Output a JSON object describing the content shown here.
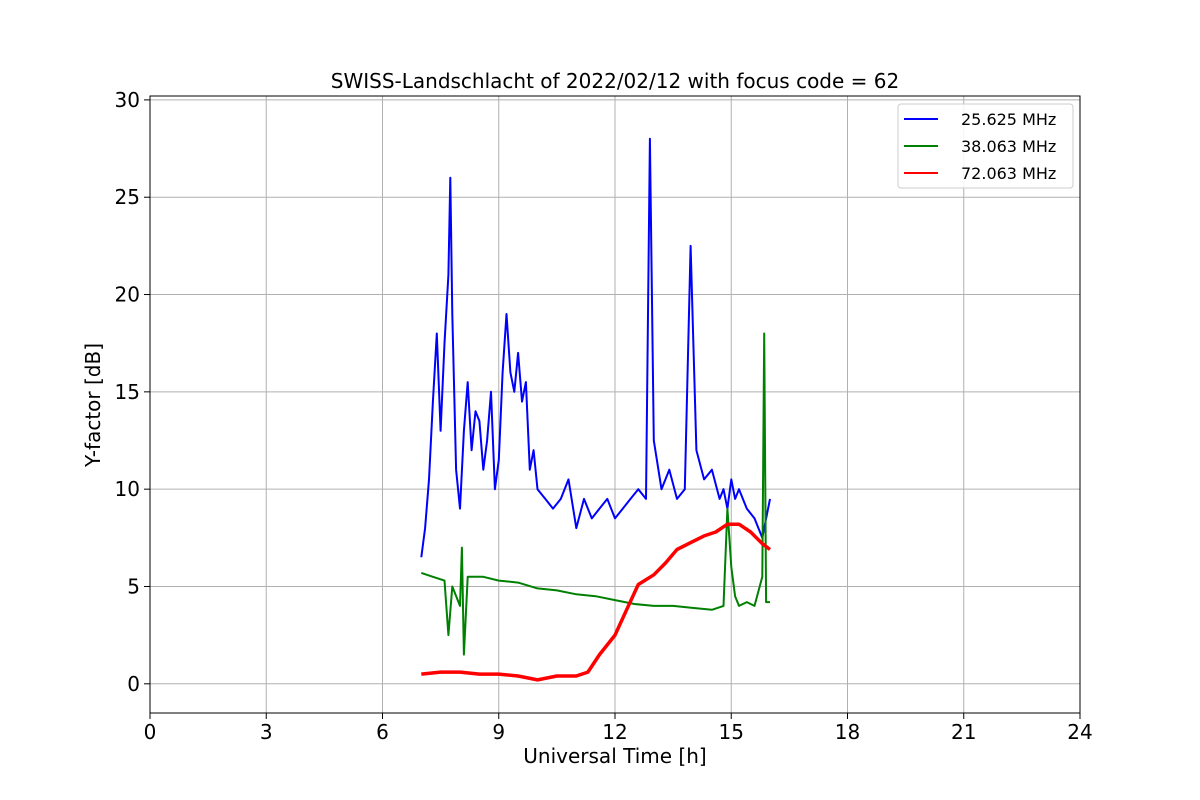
{
  "chart_data": {
    "type": "line",
    "title": "SWISS-Landschlacht of 2022/02/12 with focus code = 62",
    "xlabel": "Universal Time [h]",
    "ylabel": "Y-factor [dB]",
    "xlim": [
      0,
      24
    ],
    "ylim": [
      -1.5,
      30.2
    ],
    "xticks": [
      0,
      3,
      6,
      9,
      12,
      15,
      18,
      21,
      24
    ],
    "yticks": [
      0,
      5,
      10,
      15,
      20,
      25,
      30
    ],
    "grid": true,
    "legend_position": "top-right",
    "series": [
      {
        "name": "25.625 MHz",
        "color": "#0000ff",
        "x": [
          7.0,
          7.1,
          7.2,
          7.3,
          7.4,
          7.5,
          7.6,
          7.7,
          7.75,
          7.8,
          7.9,
          8.0,
          8.1,
          8.2,
          8.3,
          8.4,
          8.5,
          8.6,
          8.7,
          8.8,
          8.9,
          9.0,
          9.1,
          9.2,
          9.3,
          9.4,
          9.5,
          9.6,
          9.7,
          9.8,
          9.9,
          10.0,
          10.2,
          10.4,
          10.6,
          10.8,
          11.0,
          11.2,
          11.4,
          11.6,
          11.8,
          12.0,
          12.2,
          12.4,
          12.6,
          12.8,
          12.9,
          13.0,
          13.2,
          13.4,
          13.6,
          13.8,
          13.95,
          14.1,
          14.3,
          14.5,
          14.7,
          14.8,
          14.9,
          15.0,
          15.1,
          15.2,
          15.4,
          15.6,
          15.8,
          16.0
        ],
        "y": [
          6.5,
          8.0,
          10.5,
          14.5,
          18.0,
          13.0,
          17.5,
          21.0,
          26.0,
          19.0,
          11.0,
          9.0,
          13.0,
          15.5,
          12.0,
          14.0,
          13.5,
          11.0,
          12.5,
          15.0,
          10.0,
          11.5,
          16.0,
          19.0,
          16.0,
          15.0,
          17.0,
          14.5,
          15.5,
          11.0,
          12.0,
          10.0,
          9.5,
          9.0,
          9.5,
          10.5,
          8.0,
          9.5,
          8.5,
          9.0,
          9.5,
          8.5,
          9.0,
          9.5,
          10.0,
          9.5,
          28.0,
          12.5,
          10.0,
          11.0,
          9.5,
          10.0,
          22.5,
          12.0,
          10.5,
          11.0,
          9.5,
          10.0,
          9.0,
          10.5,
          9.5,
          10.0,
          9.0,
          8.5,
          7.5,
          9.5
        ]
      },
      {
        "name": "38.063 MHz",
        "color": "#008000",
        "x": [
          7.0,
          7.3,
          7.6,
          7.7,
          7.8,
          8.0,
          8.05,
          8.1,
          8.2,
          8.3,
          8.6,
          9.0,
          9.5,
          10.0,
          10.5,
          11.0,
          11.5,
          12.0,
          12.5,
          13.0,
          13.5,
          14.0,
          14.5,
          14.8,
          14.9,
          15.0,
          15.1,
          15.2,
          15.4,
          15.6,
          15.8,
          15.85,
          15.9,
          16.0
        ],
        "y": [
          5.7,
          5.5,
          5.3,
          2.5,
          5.0,
          4.0,
          7.0,
          1.5,
          5.5,
          5.5,
          5.5,
          5.3,
          5.2,
          4.9,
          4.8,
          4.6,
          4.5,
          4.3,
          4.1,
          4.0,
          4.0,
          3.9,
          3.8,
          4.0,
          9.0,
          6.0,
          4.5,
          4.0,
          4.2,
          4.0,
          5.5,
          18.0,
          4.2,
          4.2
        ]
      },
      {
        "name": "72.063 MHz",
        "color": "#ff0000",
        "x": [
          7.0,
          7.5,
          8.0,
          8.5,
          9.0,
          9.5,
          10.0,
          10.5,
          11.0,
          11.3,
          11.6,
          12.0,
          12.3,
          12.6,
          13.0,
          13.3,
          13.6,
          14.0,
          14.3,
          14.6,
          14.9,
          15.2,
          15.5,
          15.8,
          16.0
        ],
        "y": [
          0.5,
          0.6,
          0.6,
          0.5,
          0.5,
          0.4,
          0.2,
          0.4,
          0.4,
          0.6,
          1.5,
          2.5,
          3.8,
          5.1,
          5.6,
          6.2,
          6.9,
          7.3,
          7.6,
          7.8,
          8.2,
          8.2,
          7.8,
          7.2,
          6.9
        ]
      }
    ]
  }
}
